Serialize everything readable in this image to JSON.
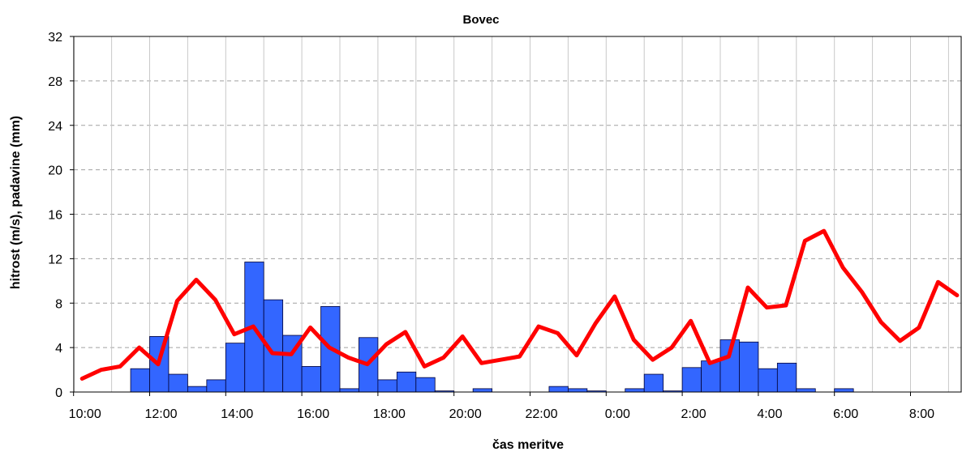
{
  "chart_data": {
    "type": "bar",
    "title": "Bovec",
    "xlabel": "čas meritve",
    "ylabel": "hitrost (m/s), padavine (mm)",
    "ylim": [
      0,
      32
    ],
    "yticks": [
      "0",
      "4",
      "8",
      "12",
      "16",
      "20",
      "24",
      "28",
      "32"
    ],
    "xticks": [
      "10:00",
      "12:00",
      "14:00",
      "16:00",
      "18:00",
      "20:00",
      "22:00",
      "0:00",
      "2:00",
      "4:00",
      "6:00",
      "8:00"
    ],
    "grid": true,
    "x_start": "10:00",
    "interval": "30 min",
    "series": [
      {
        "type": "bar",
        "color": "#3366ff",
        "values": [
          0,
          0,
          0,
          2.1,
          5.0,
          1.6,
          0.5,
          1.1,
          4.4,
          11.7,
          8.3,
          5.1,
          2.3,
          7.7,
          0.3,
          4.9,
          1.1,
          1.8,
          1.3,
          0.1,
          0,
          0.3,
          0,
          0,
          0,
          0.5,
          0.3,
          0.1,
          0,
          0.3,
          1.6,
          0.1,
          2.2,
          2.8,
          4.7,
          4.5,
          2.1,
          2.6,
          0.3,
          0,
          0.3,
          0,
          0,
          0,
          0,
          0,
          0
        ]
      },
      {
        "type": "line",
        "color": "#ff0000",
        "values": [
          1.2,
          2.0,
          2.3,
          4.0,
          2.5,
          8.2,
          10.1,
          8.3,
          5.2,
          5.9,
          3.5,
          3.4,
          5.8,
          4.0,
          3.1,
          2.5,
          4.3,
          5.4,
          2.3,
          3.1,
          5.0,
          2.6,
          2.9,
          3.2,
          5.9,
          5.3,
          3.3,
          6.2,
          8.6,
          4.7,
          2.9,
          4.0,
          6.4,
          2.6,
          3.2,
          9.4,
          7.6,
          7.8,
          13.6,
          14.5,
          11.2,
          9.0,
          6.3,
          4.6,
          5.8,
          9.9,
          8.7
        ]
      }
    ]
  }
}
